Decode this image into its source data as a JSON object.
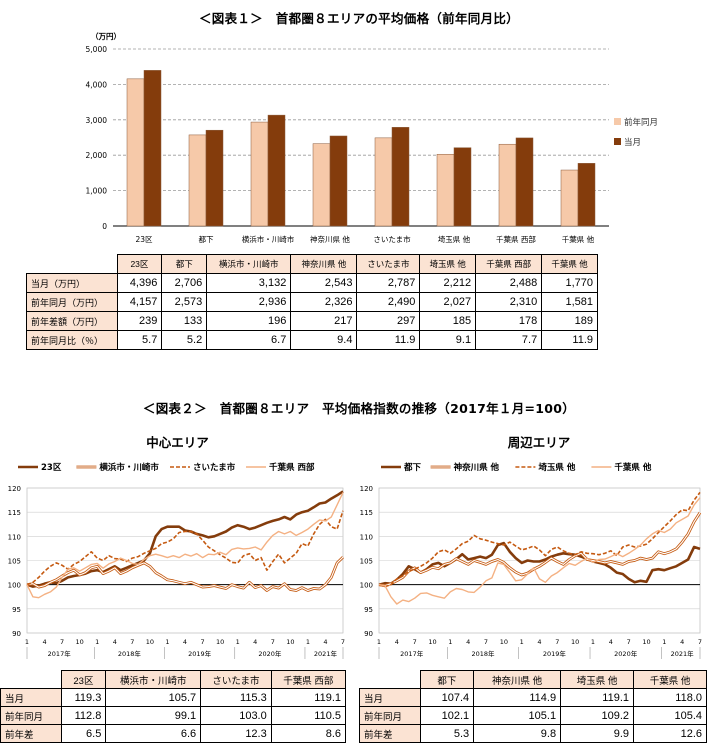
{
  "fig1": {
    "title": "＜図表１＞　首都圏８エリアの平均価格（前年同月比）",
    "unit": "（万円）",
    "chart_data": {
      "type": "bar",
      "categories": [
        "23区",
        "都下",
        "横浜市・川崎市",
        "神奈川県 他",
        "さいたま市",
        "埼玉県 他",
        "千葉県 西部",
        "千葉県 他"
      ],
      "series": [
        {
          "name": "前年同月",
          "values": [
            4157,
            2573,
            2936,
            2326,
            2490,
            2027,
            2310,
            1581
          ],
          "color": "#f6c9a9"
        },
        {
          "name": "当月",
          "values": [
            4396,
            2706,
            3132,
            2543,
            2787,
            2212,
            2488,
            1770
          ],
          "color": "#843c0c"
        }
      ],
      "ylim": [
        0,
        5000
      ],
      "yticks": [
        "0",
        "1,000",
        "2,000",
        "3,000",
        "4,000",
        "5,000"
      ],
      "grid": true,
      "legend": "right"
    },
    "table": {
      "rows": [
        {
          "label": "当月（万円）",
          "values": [
            "4,396",
            "2,706",
            "3,132",
            "2,543",
            "2,787",
            "2,212",
            "2,488",
            "1,770"
          ]
        },
        {
          "label": "前年同月（万円）",
          "values": [
            "4,157",
            "2,573",
            "2,936",
            "2,326",
            "2,490",
            "2,027",
            "2,310",
            "1,581"
          ]
        },
        {
          "label": "前年差額（万円）",
          "values": [
            "239",
            "133",
            "196",
            "217",
            "297",
            "185",
            "178",
            "189"
          ]
        },
        {
          "label": "前年同月比（％）",
          "values": [
            "5.7",
            "5.2",
            "6.7",
            "9.4",
            "11.9",
            "9.1",
            "7.7",
            "11.9"
          ]
        }
      ]
    }
  },
  "fig2": {
    "title": "＜図表２＞　首都圏８エリア　平均価格指数の推移（2017年１月=100）",
    "center": {
      "subtitle": "中心エリア",
      "chart_data": {
        "type": "line",
        "x_months": 55,
        "ylim": [
          90,
          120
        ],
        "yticks": [
          "90",
          "95",
          "100",
          "105",
          "110",
          "115",
          "120"
        ],
        "month_ticks": [
          "1",
          "4",
          "7",
          "10",
          "1",
          "4",
          "7",
          "10",
          "1",
          "4",
          "7",
          "10",
          "1",
          "4",
          "7",
          "10",
          "1",
          "4",
          "7"
        ],
        "years": [
          "2017年",
          "2018年",
          "2019年",
          "2020年",
          "2021年"
        ],
        "series": [
          {
            "name": "23区",
            "style": "thick",
            "color": "#843c0c",
            "values": [
              100,
              99.6,
              99.8,
              100.2,
              100.5,
              100.3,
              100.8,
              101.5,
              101.8,
              102,
              102.3,
              102.8,
              103,
              102.6,
              103.2,
              103.8,
              103,
              103.5,
              104,
              104.5,
              105,
              106.5,
              110,
              111.5,
              112,
              112,
              112,
              111.2,
              111,
              110.5,
              110.2,
              109.8,
              110,
              110.5,
              111,
              111.8,
              112.3,
              112,
              111.5,
              111.8,
              112.3,
              112.8,
              113.2,
              113.5,
              114,
              113.5,
              114.5,
              115,
              115.3,
              116,
              116.8,
              117,
              117.8,
              118.5,
              119.3
            ]
          },
          {
            "name": "横浜市・川崎市",
            "style": "double",
            "color": "#c55a11",
            "values": [
              100,
              100.2,
              99.5,
              99.8,
              100.5,
              101,
              101.8,
              102.5,
              103,
              102,
              102.5,
              103.5,
              103.8,
              102.3,
              102.8,
              103.5,
              102.3,
              102.8,
              103.5,
              104,
              104.5,
              103.8,
              102.5,
              101.8,
              101,
              100.8,
              100.5,
              100.2,
              100.5,
              100,
              99.5,
              99.6,
              99.8,
              99.5,
              99.2,
              100,
              99.6,
              99.3,
              100.5,
              99.4,
              99.8,
              98.8,
              99.6,
              99.3,
              100.2,
              99,
              98.8,
              99.4,
              98.8,
              99.2,
              99.1,
              100,
              101.5,
              104.5,
              105.7
            ]
          },
          {
            "name": "さいたま市",
            "style": "dashed",
            "color": "#c55a11",
            "values": [
              100,
              100.5,
              101.5,
              102.8,
              103.8,
              104.5,
              104,
              103.2,
              104.2,
              104.8,
              105.8,
              106.8,
              105.5,
              105,
              106,
              105.4,
              105.3,
              104.8,
              105.5,
              105.8,
              106.5,
              107,
              107.5,
              108.5,
              108.8,
              109.5,
              110.8,
              111,
              111,
              110.5,
              109.2,
              107.8,
              107,
              106.2,
              105.5,
              104.6,
              104.5,
              106,
              106.4,
              105,
              105.6,
              103,
              104.8,
              106.3,
              104.5,
              105.5,
              106.5,
              108.5,
              108,
              110.5,
              112.5,
              113.5,
              112,
              111.5,
              115.3
            ]
          },
          {
            "name": "千葉県 西部",
            "style": "thin",
            "color": "#f4b183",
            "values": [
              100,
              97.5,
              97.3,
              98,
              98.5,
              99.5,
              101.5,
              103.2,
              103.5,
              102.8,
              103.5,
              104.2,
              104.4,
              103.4,
              104.3,
              104.8,
              105.5,
              105,
              104.4,
              104.2,
              105.2,
              106,
              106.3,
              106,
              105.6,
              106,
              105.6,
              106.3,
              105.9,
              106.4,
              105.6,
              106.3,
              106.2,
              106.7,
              106.2,
              107.3,
              107.6,
              107.4,
              107.5,
              107.8,
              107.2,
              108.8,
              110.2,
              111,
              110.5,
              111,
              110.2,
              110.8,
              111.5,
              112.5,
              113.4,
              113.2,
              114,
              116.5,
              119.1
            ]
          }
        ]
      },
      "table": {
        "cols": [
          "23区",
          "横浜市・川崎市",
          "さいたま市",
          "千葉県 西部"
        ],
        "rows": [
          {
            "label": "当月",
            "values": [
              "119.3",
              "105.7",
              "115.3",
              "119.1"
            ]
          },
          {
            "label": "前年同月",
            "values": [
              "112.8",
              "99.1",
              "103.0",
              "110.5"
            ]
          },
          {
            "label": "前年差",
            "values": [
              "6.5",
              "6.6",
              "12.3",
              "8.6"
            ]
          }
        ]
      }
    },
    "periphery": {
      "subtitle": "周辺エリア",
      "chart_data": {
        "type": "line",
        "x_months": 55,
        "ylim": [
          90,
          120
        ],
        "yticks": [
          "90",
          "95",
          "100",
          "105",
          "110",
          "115",
          "120"
        ],
        "month_ticks": [
          "1",
          "4",
          "7",
          "10",
          "1",
          "4",
          "7",
          "10",
          "1",
          "4",
          "7",
          "10",
          "1",
          "4",
          "7",
          "10",
          "1",
          "4",
          "7"
        ],
        "years": [
          "2017年",
          "2018年",
          "2019年",
          "2020年",
          "2021年"
        ],
        "series": [
          {
            "name": "都下",
            "style": "thick",
            "color": "#843c0c",
            "values": [
              100,
              100.3,
              100.2,
              101,
              102.2,
              103.8,
              103.2,
              102.5,
              103.2,
              104.2,
              104.5,
              103.8,
              104.5,
              105.3,
              106.3,
              105.2,
              105.5,
              105.8,
              105.5,
              106.2,
              108.2,
              108.6,
              106.8,
              105.5,
              104.5,
              105,
              104.8,
              104.8,
              105.2,
              105.8,
              106.2,
              106.5,
              106.3,
              106.2,
              105.8,
              105.3,
              104.8,
              104.5,
              104.2,
              103.5,
              102.5,
              102.2,
              101.2,
              100.5,
              100.8,
              100.6,
              103,
              103.2,
              103,
              103.4,
              103.8,
              104.5,
              105.2,
              107.8,
              107.4
            ]
          },
          {
            "name": "神奈川県 他",
            "style": "double",
            "color": "#c55a11",
            "values": [
              100,
              99.8,
              100.2,
              100.8,
              101.5,
              102.8,
              103.5,
              102.5,
              103,
              103.6,
              103.3,
              104.2,
              104.5,
              105.4,
              104.8,
              104.2,
              105,
              104.6,
              104.2,
              104.8,
              105.2,
              104.6,
              103.5,
              102.6,
              102,
              102.4,
              103.2,
              103.8,
              104.6,
              105.5,
              104.8,
              104.2,
              105.2,
              106,
              106.5,
              105.2,
              105,
              104.8,
              104.5,
              104.8,
              104.5,
              104.2,
              104.8,
              105,
              105.5,
              105.2,
              105.5,
              106.8,
              106.4,
              106.8,
              107.4,
              108.8,
              110.5,
              113,
              114.9
            ]
          },
          {
            "name": "埼玉県 他",
            "style": "dashed",
            "color": "#c55a11",
            "values": [
              100,
              99.6,
              100,
              101.2,
              101.8,
              102.8,
              103.2,
              103.8,
              104.5,
              105.5,
              106.8,
              107.2,
              106.5,
              107.4,
              108.5,
              109,
              110.2,
              109.5,
              109.2,
              108.8,
              108.5,
              108.2,
              108.8,
              108,
              107.2,
              107.5,
              108,
              107.2,
              106,
              107.3,
              107.8,
              107,
              106.5,
              106.2,
              106.8,
              106.5,
              106.4,
              106.2,
              106.5,
              107,
              106,
              107.8,
              108.2,
              107.8,
              108,
              108.4,
              109.5,
              110.8,
              112,
              113.2,
              114.5,
              115.5,
              115.3,
              117.5,
              119.1
            ]
          },
          {
            "name": "千葉県 他",
            "style": "thin",
            "color": "#f4b183",
            "values": [
              100,
              99.8,
              97.5,
              96,
              96.8,
              96.5,
              97.2,
              98.2,
              98.3,
              97.8,
              97.5,
              97.2,
              98.5,
              99.2,
              99,
              98.5,
              98.4,
              99.5,
              100.8,
              101.4,
              104.5,
              104.2,
              102.5,
              100.8,
              101,
              102.2,
              103.5,
              101.2,
              100.5,
              101.8,
              102.5,
              103.5,
              104.4,
              104,
              104.8,
              105.5,
              104.6,
              105.2,
              105.3,
              105.8,
              106.4,
              105.8,
              106.5,
              107.3,
              108.2,
              109.5,
              110.5,
              111.2,
              110.8,
              111.5,
              112.8,
              113.5,
              114.2,
              116.5,
              118
            ]
          }
        ]
      },
      "table": {
        "cols": [
          "都下",
          "神奈川県 他",
          "埼玉県 他",
          "千葉県 他"
        ],
        "rows": [
          {
            "label": "当月",
            "values": [
              "107.4",
              "114.9",
              "119.1",
              "118.0"
            ]
          },
          {
            "label": "前年同月",
            "values": [
              "102.1",
              "105.1",
              "109.2",
              "105.4"
            ]
          },
          {
            "label": "前年差",
            "values": [
              "5.3",
              "9.8",
              "9.9",
              "12.6"
            ]
          }
        ]
      }
    }
  }
}
